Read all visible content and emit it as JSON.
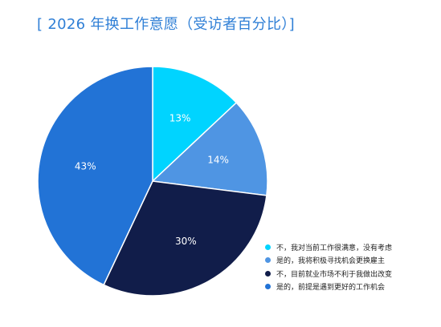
{
  "title": "[ 2026 年换工作意愿（受访者百分比）]",
  "chart_data": {
    "type": "pie",
    "title": "[ 2026 年换工作意愿（受访者百分比）]",
    "legend_position": "bottom-right",
    "slices": [
      {
        "label": "不，我对当前工作很满意，没有考虑",
        "value": 13,
        "display": "13%",
        "color": "#00d4ff"
      },
      {
        "label": "是的，我将积极寻找机会更换雇主",
        "value": 14,
        "display": "14%",
        "color": "#4f95e3"
      },
      {
        "label": "不，目前就业市场不利于我做出改变",
        "value": 30,
        "display": "30%",
        "color": "#111d4a"
      },
      {
        "label": "是的，前提是遇到更好的工作机会",
        "value": 43,
        "display": "43%",
        "color": "#2273d6"
      }
    ]
  }
}
